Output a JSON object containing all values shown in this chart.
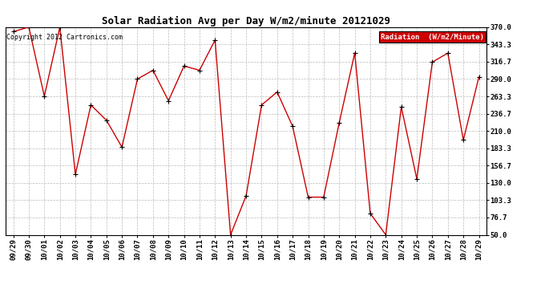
{
  "title": "Solar Radiation Avg per Day W/m2/minute 20121029",
  "copyright_text": "Copyright 2012 Cartronics.com",
  "legend_label": "Radiation  (W/m2/Minute)",
  "x_labels": [
    "09/29",
    "09/30",
    "10/01",
    "10/02",
    "10/03",
    "10/04",
    "10/05",
    "10/06",
    "10/07",
    "10/08",
    "10/09",
    "10/10",
    "10/11",
    "10/12",
    "10/13",
    "10/14",
    "10/15",
    "10/16",
    "10/17",
    "10/18",
    "10/19",
    "10/20",
    "10/21",
    "10/22",
    "10/23",
    "10/24",
    "10/25",
    "10/26",
    "10/27",
    "10/28",
    "10/29"
  ],
  "y_values": [
    363.0,
    370.0,
    263.5,
    370.0,
    143.0,
    250.0,
    226.5,
    185.0,
    290.0,
    303.5,
    256.5,
    310.0,
    303.5,
    350.0,
    50.0,
    110.0,
    250.0,
    270.0,
    217.0,
    108.0,
    108.0,
    222.5,
    330.0,
    83.0,
    50.0,
    247.0,
    136.0,
    316.0,
    330.0,
    196.0,
    293.0
  ],
  "line_color": "#cc0000",
  "marker_color": "#000000",
  "bg_color": "#ffffff",
  "grid_color": "#bbbbbb",
  "y_min": 50.0,
  "y_max": 370.0,
  "y_tick_labels": [
    "50.0",
    "76.7",
    "103.3",
    "130.0",
    "156.7",
    "183.3",
    "210.0",
    "236.7",
    "263.3",
    "290.0",
    "316.7",
    "343.3",
    "370.0"
  ],
  "y_tick_values": [
    50.0,
    76.7,
    103.3,
    130.0,
    156.7,
    183.3,
    210.0,
    236.7,
    263.3,
    290.0,
    316.7,
    343.3,
    370.0
  ],
  "legend_bg": "#cc0000",
  "legend_text_color": "#ffffff",
  "title_fontsize": 9,
  "tick_fontsize": 6.5,
  "copyright_fontsize": 6
}
